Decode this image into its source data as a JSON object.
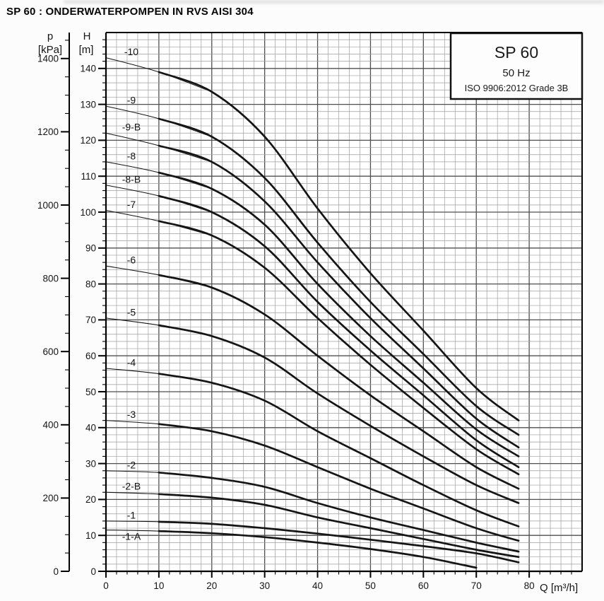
{
  "title": "SP 60 : ONDERWATERPOMPEN IN RVS AISI 304",
  "legend": {
    "model": "SP 60",
    "frequency": "50 Hz",
    "standard": "ISO 9906:2012 Grade 3B"
  },
  "axes": {
    "pressure": {
      "symbol": "p",
      "unit": "[kPa]"
    },
    "head": {
      "symbol": "H",
      "unit": "[m]"
    },
    "flow": {
      "label": "Q [m³/h]"
    }
  },
  "colors": {
    "curve": "#151515",
    "grid_minor": "#9d9d9d",
    "grid_major": "#4f4f4f",
    "axis": "#000000",
    "background": "#fcfcfc",
    "legend_border": "#111111",
    "legend_fill": "#fdfdfd"
  },
  "chart_data": {
    "type": "line",
    "title": "SP 60",
    "subtitle": "50 Hz",
    "standard": "ISO 9906:2012 Grade 3B",
    "xlabel": "Q [m³/h]",
    "ylabel": "H [m]",
    "ylabel_secondary": "p [kPa]",
    "xlim": [
      0,
      90
    ],
    "ylim": [
      0,
      150
    ],
    "plim": [
      0,
      1450
    ],
    "kpa_per_m": 9.80665,
    "grid": {
      "minor_step": 2,
      "major_step": 10,
      "on": true
    },
    "legend_position": "top-right",
    "x_ticks": [
      0,
      10,
      20,
      30,
      40,
      50,
      60,
      70,
      80
    ],
    "h_ticks": [
      0,
      10,
      20,
      30,
      40,
      50,
      60,
      70,
      80,
      90,
      100,
      110,
      120,
      130,
      140
    ],
    "p_ticks": [
      0,
      200,
      400,
      600,
      800,
      1000,
      1200,
      1400
    ],
    "series": [
      {
        "name": "-10",
        "q": [
          0,
          10,
          20,
          30,
          40,
          50,
          60,
          70,
          78
        ],
        "h": [
          143,
          139,
          133.5,
          121,
          101,
          83,
          67,
          51,
          42
        ]
      },
      {
        "name": "-9",
        "q": [
          0,
          10,
          20,
          30,
          40,
          50,
          60,
          70,
          78
        ],
        "h": [
          129.5,
          126,
          121,
          109.5,
          91.5,
          75,
          60.5,
          46,
          38
        ]
      },
      {
        "name": "-9-B",
        "q": [
          0,
          10,
          20,
          30,
          40,
          50,
          60,
          70,
          78
        ],
        "h": [
          122,
          118.5,
          114,
          103,
          86,
          70.5,
          56.5,
          42.5,
          34.5
        ]
      },
      {
        "name": "-8",
        "q": [
          0,
          10,
          20,
          30,
          40,
          50,
          60,
          70,
          78
        ],
        "h": [
          114,
          111,
          106.5,
          96.5,
          80,
          65.5,
          52.5,
          39.5,
          32
        ]
      },
      {
        "name": "-8-B",
        "q": [
          0,
          10,
          20,
          30,
          40,
          50,
          60,
          70,
          78
        ],
        "h": [
          107.5,
          104.5,
          100,
          90.5,
          75,
          61.5,
          49,
          36.5,
          29
        ]
      },
      {
        "name": "-7",
        "q": [
          0,
          10,
          20,
          30,
          40,
          50,
          60,
          70,
          78
        ],
        "h": [
          100.5,
          97.5,
          93.5,
          84.5,
          70.5,
          57.5,
          45.5,
          34,
          27
        ]
      },
      {
        "name": "-6",
        "q": [
          0,
          10,
          20,
          30,
          40,
          50,
          60,
          70,
          78
        ],
        "h": [
          85,
          82.5,
          79,
          71.5,
          60,
          49,
          39,
          29,
          23
        ]
      },
      {
        "name": "-5",
        "q": [
          0,
          10,
          20,
          30,
          40,
          50,
          60,
          70,
          78
        ],
        "h": [
          70.5,
          68.5,
          65.5,
          59.5,
          49.5,
          40.5,
          32,
          24,
          19
        ]
      },
      {
        "name": "-4",
        "q": [
          0,
          10,
          20,
          30,
          40,
          50,
          60,
          70,
          78
        ],
        "h": [
          56.5,
          55,
          52.5,
          47.5,
          39,
          31.5,
          24,
          17,
          12.5
        ]
      },
      {
        "name": "-3",
        "q": [
          0,
          10,
          20,
          30,
          40,
          50,
          60,
          70,
          78
        ],
        "h": [
          42,
          41,
          39,
          35,
          29,
          23,
          17.5,
          12,
          8.5
        ]
      },
      {
        "name": "-2",
        "q": [
          0,
          10,
          20,
          30,
          40,
          50,
          60,
          70,
          78
        ],
        "h": [
          28,
          27.5,
          26,
          23.5,
          19,
          15,
          11.5,
          8,
          5.5
        ]
      },
      {
        "name": "-2-B",
        "q": [
          0,
          10,
          20,
          30,
          40,
          50,
          60,
          70,
          78
        ],
        "h": [
          22,
          21.5,
          20.5,
          18.5,
          15,
          12,
          9,
          6,
          4
        ]
      },
      {
        "name": "-1",
        "q": [
          0,
          10,
          20,
          30,
          40,
          50,
          60,
          70,
          78
        ],
        "h": [
          14,
          13.8,
          13.2,
          12,
          10.5,
          8.8,
          7,
          5,
          2.5
        ]
      },
      {
        "name": "-1-A",
        "q": [
          0,
          10,
          20,
          30,
          40,
          50,
          60,
          70
        ],
        "h": [
          11.5,
          11.2,
          10.6,
          9.5,
          8,
          6.2,
          4,
          1
        ],
        "label_below": true
      }
    ]
  }
}
